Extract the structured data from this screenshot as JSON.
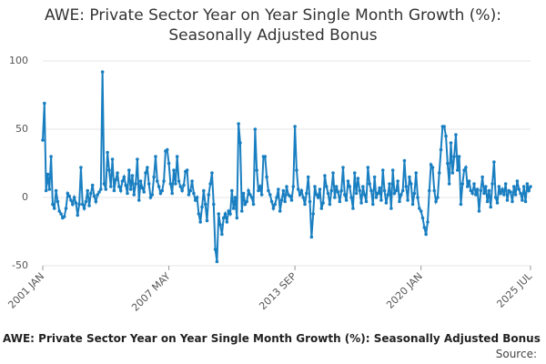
{
  "chart_data": {
    "type": "line",
    "title": "AWE: Private Sector Year on Year Single Month Growth (%): Seasonally Adjusted Bonus",
    "footer": "AWE: Private Sector Year on Year Single Month Growth (%): Seasonally Adjusted Bonus",
    "source": "Source:",
    "color": "#1a7fc1",
    "grid": true,
    "ylim": [
      -50,
      100
    ],
    "yticks": [
      -50,
      0,
      50,
      100
    ],
    "categories": [
      "2001 JAN",
      null,
      null,
      null,
      null,
      null,
      null,
      null,
      null,
      null,
      null,
      null,
      null,
      null,
      null,
      null,
      null,
      null,
      null,
      null,
      null,
      null,
      null,
      null,
      null,
      null,
      null,
      null,
      null,
      null,
      null,
      null,
      null,
      null,
      null,
      null,
      null,
      null,
      null,
      null,
      null,
      null,
      null,
      null,
      null,
      null,
      null,
      null,
      null,
      null,
      null,
      null,
      null,
      null,
      null,
      null,
      null,
      null,
      null,
      null,
      null,
      null,
      null,
      null,
      null,
      null,
      null,
      null,
      null,
      null,
      null,
      null,
      null,
      null,
      null,
      null,
      "2007 MAY",
      null,
      null,
      null,
      null,
      null,
      null,
      null,
      null,
      null,
      null,
      null,
      null,
      null,
      null,
      null,
      null,
      null,
      null,
      null,
      null,
      null,
      null,
      null,
      null,
      null,
      null,
      null,
      null,
      null,
      null,
      null,
      null,
      null,
      null,
      null,
      null,
      null,
      null,
      null,
      null,
      null,
      null,
      null,
      null,
      null,
      null,
      null,
      null,
      null,
      null,
      null,
      null,
      null,
      null,
      null,
      null,
      null,
      null,
      null,
      null,
      null,
      null,
      null,
      null,
      null,
      null,
      null,
      null,
      null,
      null,
      null,
      null,
      null,
      null,
      null,
      "2013 SEP",
      null,
      null,
      null,
      null,
      null,
      null,
      null,
      null,
      null,
      null,
      null,
      null,
      null,
      null,
      null,
      null,
      null,
      null,
      null,
      null,
      null,
      null,
      null,
      null,
      null,
      null,
      null,
      null,
      null,
      null,
      null,
      null,
      null,
      null,
      null,
      null,
      null,
      null,
      null,
      null,
      null,
      null,
      null,
      null,
      null,
      null,
      null,
      null,
      null,
      null,
      null,
      null,
      null,
      null,
      null,
      null,
      null,
      null,
      null,
      null,
      null,
      null,
      null,
      null,
      null,
      null,
      null,
      null,
      null,
      null,
      null,
      null,
      null,
      null,
      null,
      "2020 JAN",
      null,
      null,
      null,
      null,
      null,
      null,
      null,
      null,
      null,
      null,
      null,
      null,
      null,
      null,
      null,
      null,
      null,
      null,
      null,
      null,
      null,
      null,
      null,
      null,
      null,
      null,
      null,
      null,
      null,
      null,
      null,
      null,
      null,
      null,
      null,
      null,
      null,
      null,
      null,
      null,
      null,
      null,
      null,
      null,
      null,
      null,
      null,
      null,
      null,
      null,
      null,
      null,
      null,
      null,
      null,
      null,
      null,
      null,
      null,
      null,
      null,
      null,
      null,
      null,
      null,
      "2025 JUL"
    ],
    "values": [
      42,
      69,
      5,
      17,
      6,
      30,
      -5,
      -8,
      5,
      -3,
      -10,
      -12,
      -15,
      -14,
      -8,
      3,
      1,
      -2,
      -5,
      0,
      -4,
      -13,
      -5,
      22,
      -5,
      -8,
      -3,
      5,
      -6,
      3,
      9,
      1,
      -3,
      2,
      4,
      6,
      92,
      10,
      6,
      33,
      20,
      8,
      28,
      5,
      13,
      18,
      8,
      5,
      12,
      15,
      9,
      3,
      20,
      6,
      16,
      2,
      10,
      28,
      -2,
      12,
      7,
      4,
      18,
      22,
      10,
      0,
      2,
      15,
      30,
      12,
      8,
      3,
      5,
      12,
      34,
      35,
      25,
      10,
      3,
      20,
      10,
      30,
      12,
      8,
      5,
      9,
      19,
      20,
      2,
      5,
      12,
      3,
      -2,
      0,
      -12,
      -18,
      -7,
      5,
      -5,
      -17,
      2,
      10,
      18,
      -5,
      -38,
      -47,
      -12,
      -20,
      -27,
      -15,
      -12,
      -18,
      -10,
      -12,
      5,
      -8,
      0,
      -15,
      54,
      40,
      -10,
      3,
      -5,
      -3,
      5,
      2,
      0,
      -5,
      50,
      20,
      5,
      8,
      2,
      30,
      30,
      15,
      5,
      2,
      -3,
      -8,
      -5,
      0,
      6,
      -10,
      -2,
      5,
      -3,
      8,
      2,
      1,
      -2,
      8,
      52,
      20,
      6,
      2,
      5,
      0,
      -5,
      3,
      15,
      -3,
      -29,
      -12,
      8,
      2,
      0,
      6,
      -8,
      -4,
      16,
      8,
      3,
      -5,
      5,
      18,
      0,
      8,
      4,
      -3,
      5,
      22,
      2,
      -2,
      12,
      8,
      0,
      -8,
      18,
      3,
      14,
      5,
      -4,
      8,
      2,
      -3,
      22,
      10,
      5,
      -5,
      15,
      0,
      3,
      7,
      -2,
      20,
      5,
      -4,
      2,
      10,
      -8,
      20,
      3,
      5,
      12,
      -3,
      2,
      5,
      27,
      8,
      -2,
      15,
      10,
      -5,
      3,
      18,
      0,
      -8,
      -10,
      -15,
      -22,
      -27,
      -18,
      5,
      24,
      22,
      5,
      -3,
      0,
      18,
      35,
      52,
      52,
      45,
      25,
      10,
      40,
      18,
      30,
      46,
      20,
      30,
      -5,
      10,
      20,
      22,
      8,
      12,
      5,
      3,
      10,
      2,
      6,
      -10,
      5,
      15,
      3,
      8,
      -3,
      5,
      -7,
      10,
      26,
      0,
      -4,
      8,
      3,
      6,
      2,
      10,
      -2,
      5,
      4,
      -3,
      8,
      2,
      12,
      6,
      3,
      -2,
      8,
      -3,
      10,
      5,
      8
    ]
  }
}
